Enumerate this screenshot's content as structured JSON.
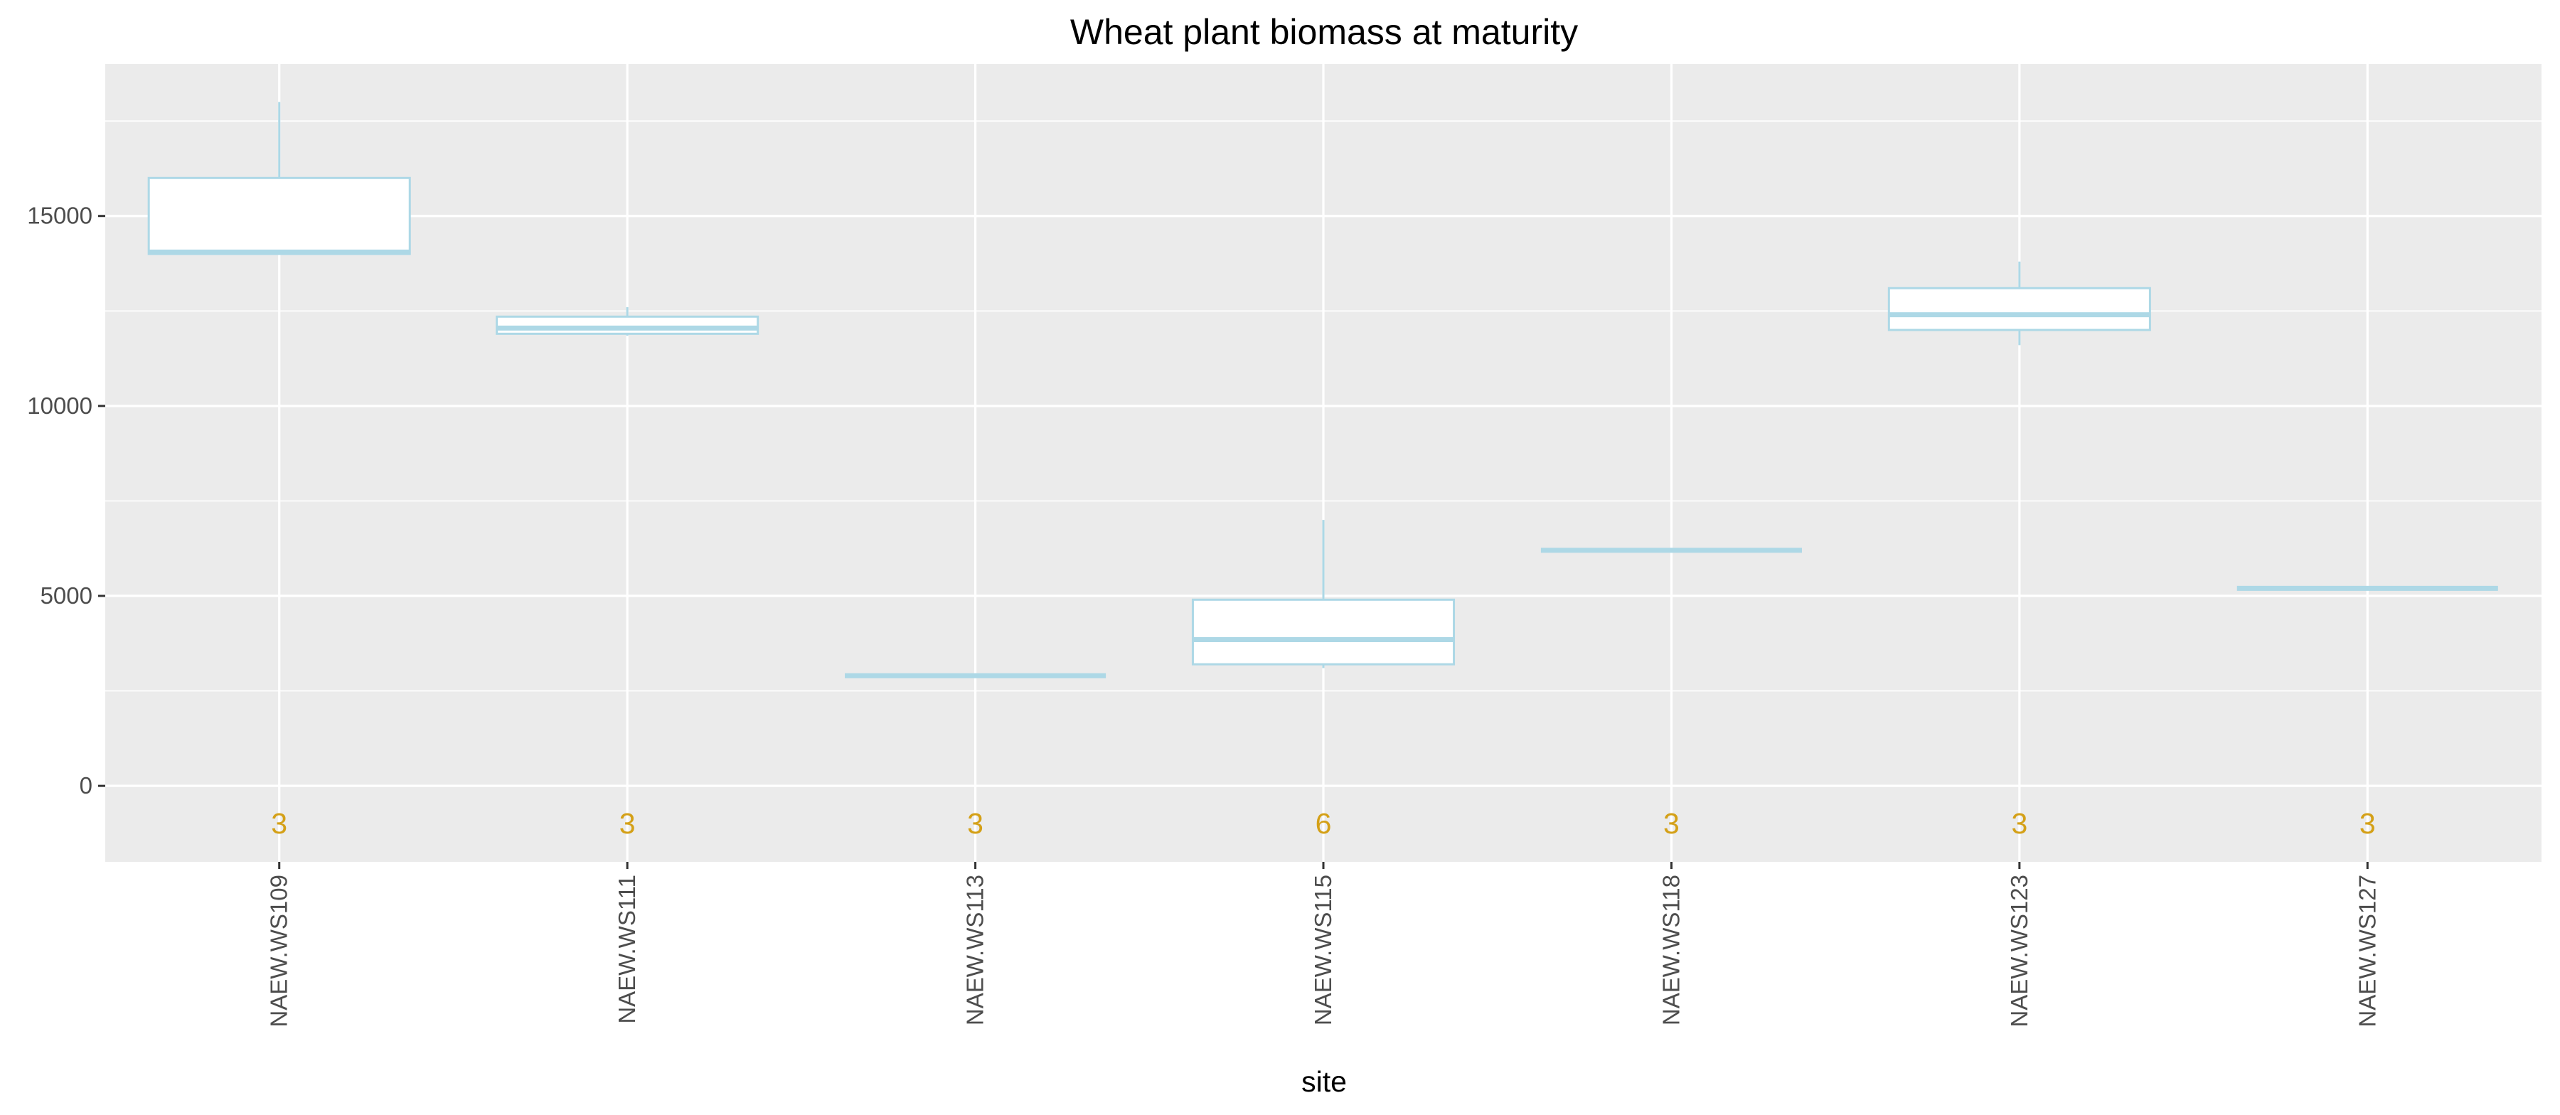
{
  "chart_data": {
    "type": "boxplot",
    "title": "Wheat plant biomass at maturity",
    "xlabel": "site",
    "ylabel": "",
    "ylim": [
      -2000,
      19000
    ],
    "yticks": [
      0,
      5000,
      10000,
      15000
    ],
    "ytick_labels": [
      "0",
      "5000",
      "10000",
      "15000"
    ],
    "grid": true,
    "legend": "none",
    "colors": {
      "panel": "#ebebeb",
      "grid": "#ffffff",
      "box_stroke": "#add8e6",
      "box_fill": "#ffffff",
      "count_text": "#d4a017"
    },
    "categories": [
      "NAEW.WS109",
      "NAEW.WS111",
      "NAEW.WS113",
      "NAEW.WS115",
      "NAEW.WS118",
      "NAEW.WS123",
      "NAEW.WS127"
    ],
    "boxes": [
      {
        "category": "NAEW.WS109",
        "min": 14000,
        "q1": 14000,
        "median": 14050,
        "q3": 16000,
        "max": 18000,
        "n": 3
      },
      {
        "category": "NAEW.WS111",
        "min": 11850,
        "q1": 11900,
        "median": 12050,
        "q3": 12350,
        "max": 12600,
        "n": 3
      },
      {
        "category": "NAEW.WS113",
        "min": 2900,
        "q1": 2900,
        "median": 2900,
        "q3": 2900,
        "max": 2900,
        "n": 3
      },
      {
        "category": "NAEW.WS115",
        "min": 3100,
        "q1": 3200,
        "median": 3850,
        "q3": 4900,
        "max": 7000,
        "n": 6
      },
      {
        "category": "NAEW.WS118",
        "min": 6200,
        "q1": 6200,
        "median": 6200,
        "q3": 6200,
        "max": 6200,
        "n": 3
      },
      {
        "category": "NAEW.WS123",
        "min": 11600,
        "q1": 12000,
        "median": 12400,
        "q3": 13100,
        "max": 13800,
        "n": 3
      },
      {
        "category": "NAEW.WS127",
        "min": 5200,
        "q1": 5200,
        "median": 5200,
        "q3": 5200,
        "max": 5200,
        "n": 3
      }
    ],
    "counts": [
      "3",
      "3",
      "3",
      "6",
      "3",
      "3",
      "3"
    ]
  }
}
